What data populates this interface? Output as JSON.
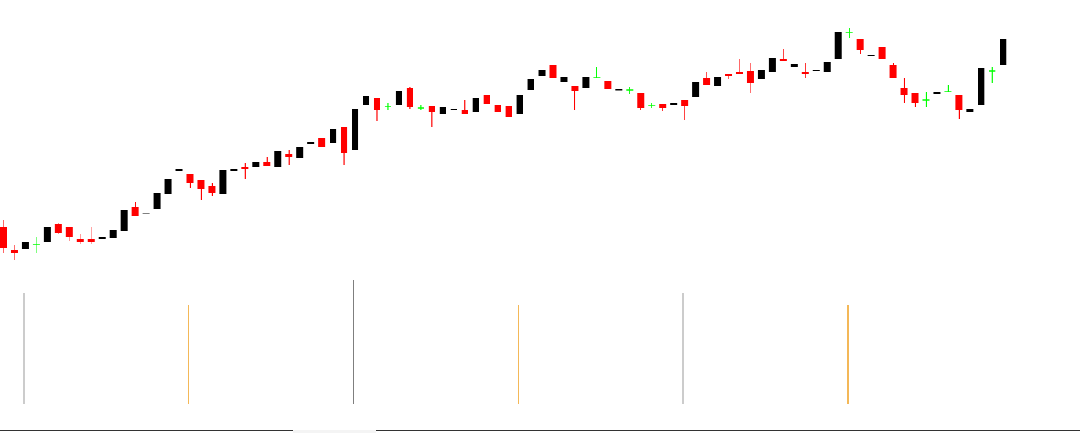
{
  "chart_data": {
    "type": "candlestick",
    "ylim": [
      0,
      400
    ],
    "up_color": "#000000",
    "down_color": "#ff0000",
    "doji_color": "#00ff00",
    "open": [
      70,
      37,
      38,
      45,
      48,
      74,
      70,
      53,
      53,
      53,
      54,
      65,
      99,
      90,
      96,
      118,
      152,
      147,
      138,
      130,
      118,
      152,
      158,
      158,
      164,
      158,
      176,
      170,
      191,
      200,
      192,
      216,
      182,
      247,
      258,
      245,
      247,
      272,
      243,
      246,
      235,
      240,
      240,
      238,
      262,
      247,
      246,
      235,
      269,
      290,
      305,
      281,
      275,
      272,
      287,
      283,
      269,
      269,
      265,
      247,
      249,
      247,
      255,
      259,
      286,
      275,
      292,
      296,
      297,
      285,
      296,
      314,
      303,
      296,
      297,
      296,
      315,
      353,
      344,
      318,
      332,
      305,
      272,
      265,
      255,
      264,
      267,
      262,
      238,
      247,
      297,
      306
    ],
    "high": [
      80,
      44,
      48,
      55,
      70,
      76,
      70,
      60,
      70,
      55,
      66,
      95,
      107,
      91,
      119,
      140,
      154,
      147,
      138,
      134,
      153,
      154,
      163,
      165,
      172,
      180,
      182,
      187,
      193,
      200,
      212,
      216,
      242,
      261,
      258,
      250,
      268,
      274,
      248,
      246,
      245,
      242,
      255,
      257,
      262,
      247,
      246,
      262,
      285,
      298,
      305,
      288,
      275,
      288,
      302,
      283,
      270,
      274,
      265,
      251,
      249,
      251,
      255,
      281,
      296,
      288,
      292,
      314,
      308,
      299,
      316,
      329,
      307,
      308,
      299,
      310,
      353,
      360,
      344,
      320,
      332,
      309,
      286,
      265,
      267,
      267,
      277,
      262,
      242,
      301,
      302,
      344
    ],
    "low": [
      33,
      22,
      38,
      33,
      48,
      60,
      50,
      46,
      46,
      53,
      54,
      65,
      86,
      90,
      96,
      118,
      152,
      127,
      110,
      116,
      118,
      152,
      140,
      158,
      159,
      158,
      160,
      170,
      191,
      187,
      192,
      160,
      182,
      247,
      224,
      240,
      247,
      242,
      240,
      215,
      235,
      240,
      234,
      238,
      249,
      238,
      230,
      235,
      269,
      290,
      287,
      281,
      240,
      272,
      287,
      271,
      269,
      264,
      240,
      243,
      239,
      247,
      225,
      259,
      277,
      275,
      285,
      292,
      265,
      285,
      296,
      311,
      303,
      286,
      297,
      296,
      315,
      345,
      321,
      318,
      314,
      287,
      251,
      245,
      244,
      264,
      267,
      227,
      238,
      247,
      280,
      306
    ],
    "close": [
      40,
      33,
      48,
      45,
      70,
      62,
      55,
      48,
      48,
      55,
      66,
      95,
      86,
      91,
      119,
      140,
      154,
      134,
      126,
      119,
      153,
      154,
      155,
      165,
      159,
      180,
      172,
      187,
      193,
      187,
      212,
      178,
      242,
      261,
      240,
      245,
      268,
      245,
      243,
      237,
      245,
      242,
      234,
      257,
      249,
      238,
      230,
      262,
      285,
      298,
      287,
      288,
      268,
      288,
      287,
      271,
      270,
      269,
      243,
      247,
      243,
      251,
      246,
      281,
      277,
      288,
      289,
      292,
      280,
      299,
      316,
      311,
      307,
      293,
      299,
      310,
      353,
      353,
      327,
      320,
      314,
      287,
      262,
      250,
      255,
      267,
      267,
      240,
      242,
      301,
      297,
      344
    ]
  }
}
